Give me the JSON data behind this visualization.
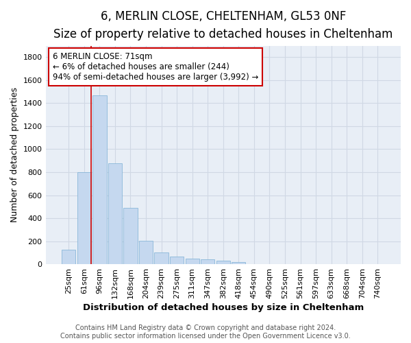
{
  "title1": "6, MERLIN CLOSE, CHELTENHAM, GL53 0NF",
  "title2": "Size of property relative to detached houses in Cheltenham",
  "xlabel": "Distribution of detached houses by size in Cheltenham",
  "ylabel": "Number of detached properties",
  "categories": [
    "25sqm",
    "61sqm",
    "96sqm",
    "132sqm",
    "168sqm",
    "204sqm",
    "239sqm",
    "275sqm",
    "311sqm",
    "347sqm",
    "382sqm",
    "418sqm",
    "454sqm",
    "490sqm",
    "525sqm",
    "561sqm",
    "597sqm",
    "633sqm",
    "668sqm",
    "704sqm",
    "740sqm"
  ],
  "values": [
    125,
    800,
    1470,
    875,
    490,
    205,
    105,
    65,
    50,
    40,
    30,
    20,
    0,
    0,
    0,
    0,
    0,
    0,
    0,
    0,
    0
  ],
  "bar_color": "#c5d8ef",
  "bar_edgecolor": "#7bafd4",
  "vline_x_index": 1,
  "vline_color": "#cc0000",
  "annotation_line1": "6 MERLIN CLOSE: 71sqm",
  "annotation_line2": "← 6% of detached houses are smaller (244)",
  "annotation_line3": "94% of semi-detached houses are larger (3,992) →",
  "annotation_box_color": "#ffffff",
  "annotation_box_edgecolor": "#cc0000",
  "ylim": [
    0,
    1900
  ],
  "yticks": [
    0,
    200,
    400,
    600,
    800,
    1000,
    1200,
    1400,
    1600,
    1800
  ],
  "grid_color": "#d0d8e4",
  "bg_color": "#e8eef6",
  "footer1": "Contains HM Land Registry data © Crown copyright and database right 2024.",
  "footer2": "Contains public sector information licensed under the Open Government Licence v3.0.",
  "title1_fontsize": 12,
  "title2_fontsize": 10,
  "xlabel_fontsize": 9.5,
  "ylabel_fontsize": 9,
  "tick_fontsize": 8,
  "annotation_fontsize": 8.5,
  "footer_fontsize": 7
}
